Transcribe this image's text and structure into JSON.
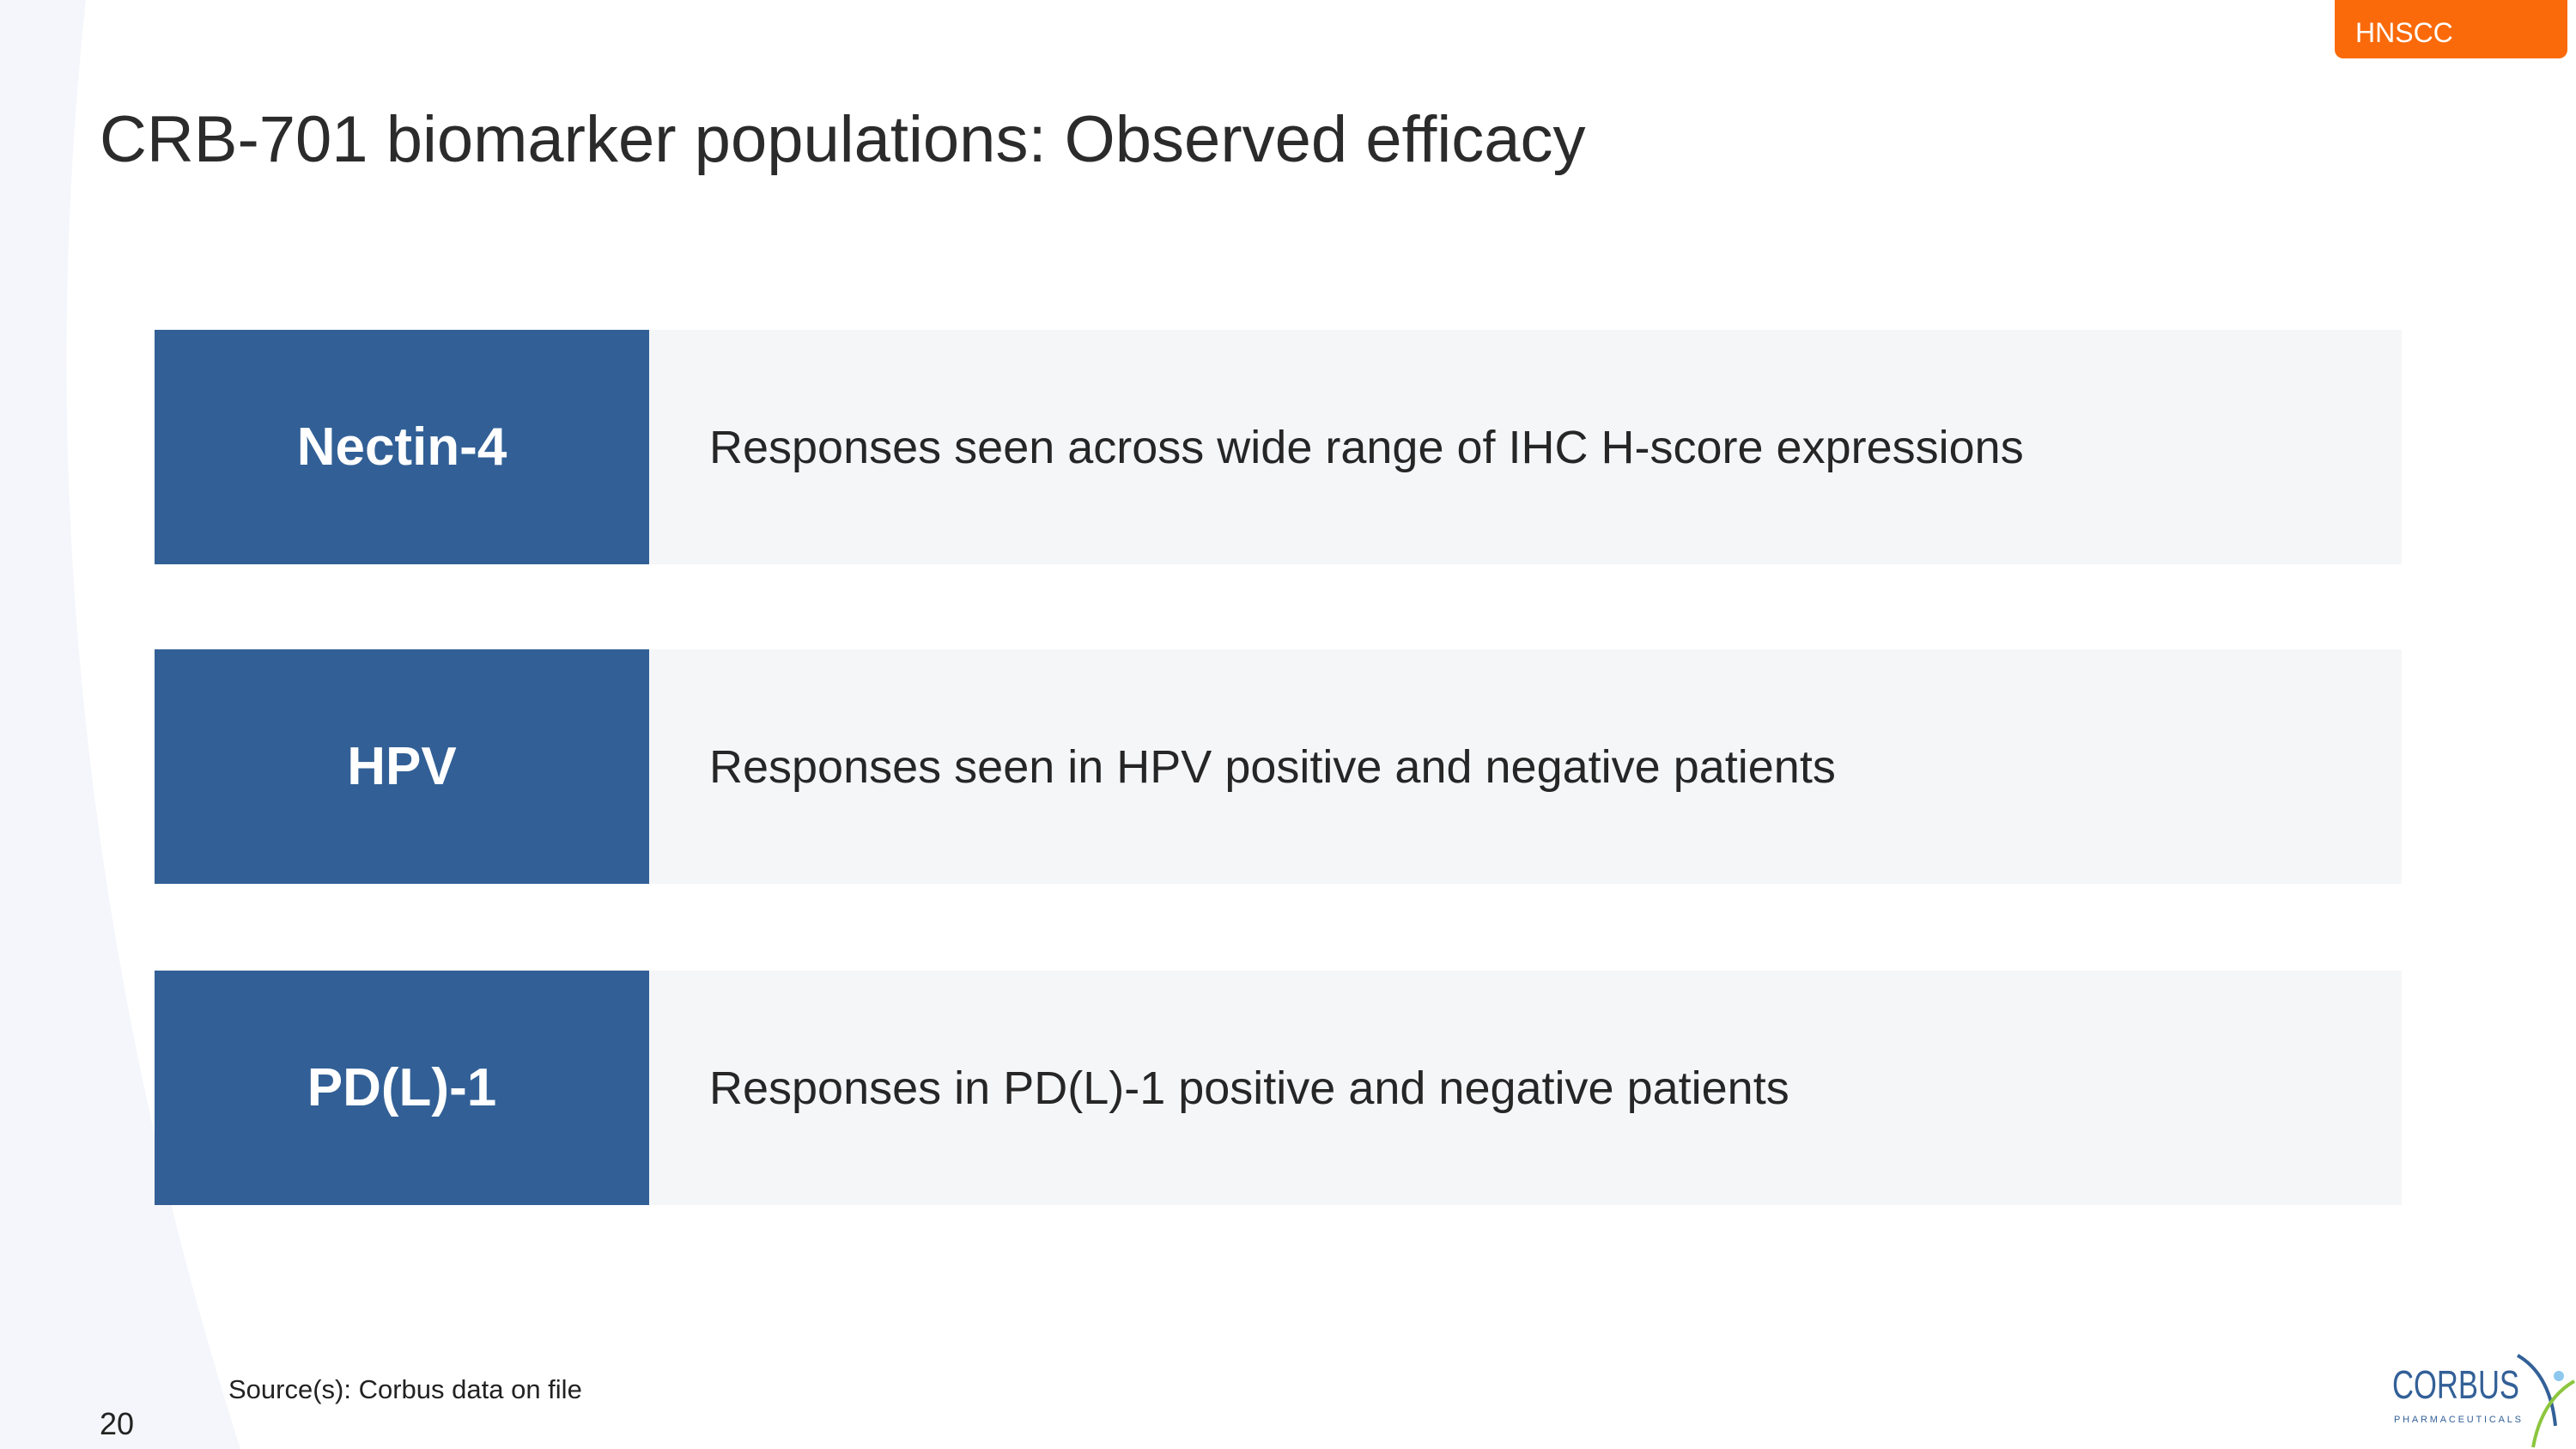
{
  "tag": "HNSCC",
  "title": "CRB-701 biomarker populations:  Observed efficacy",
  "rows": [
    {
      "label": "Nectin-4",
      "description": "Responses seen across wide range of IHC H-score expressions"
    },
    {
      "label": "HPV",
      "description": "Responses seen in HPV positive and negative patients"
    },
    {
      "label": "PD(L)-1",
      "description": "Responses in PD(L)-1 positive and negative patients"
    }
  ],
  "source": "Source(s): Corbus data on file",
  "page_number": "20",
  "logo": {
    "name": "CORBUS",
    "sub": "PHARMACEUTICALS"
  },
  "colors": {
    "accent": "#fa6a0a",
    "label_bg": "#326096",
    "row_bg": "#f5f6f8"
  }
}
